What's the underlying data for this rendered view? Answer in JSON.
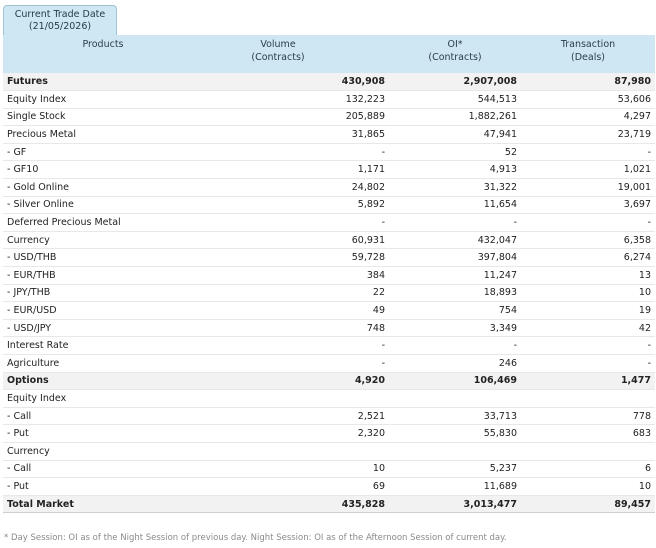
{
  "tab": {
    "line1": "Current Trade Date",
    "line2": "(21/05/2026)"
  },
  "headers": {
    "products": "Products",
    "volume": "Volume",
    "volume_unit": "(Contracts)",
    "oi": "OI*",
    "oi_unit": "(Contracts)",
    "transaction": "Transaction",
    "transaction_unit": "(Deals)"
  },
  "rows": [
    {
      "product": "Futures",
      "volume": "430,908",
      "oi": "2,907,008",
      "transaction": "87,980",
      "kind": "group"
    },
    {
      "product": "Equity Index",
      "volume": "132,223",
      "oi": "544,513",
      "transaction": "53,606",
      "kind": "row"
    },
    {
      "product": "Single Stock",
      "volume": "205,889",
      "oi": "1,882,261",
      "transaction": "4,297",
      "kind": "row"
    },
    {
      "product": "Precious Metal",
      "volume": "31,865",
      "oi": "47,941",
      "transaction": "23,719",
      "kind": "row"
    },
    {
      "product": "- GF",
      "volume": "-",
      "oi": "52",
      "transaction": "-",
      "kind": "row"
    },
    {
      "product": "- GF10",
      "volume": "1,171",
      "oi": "4,913",
      "transaction": "1,021",
      "kind": "row"
    },
    {
      "product": "- Gold Online",
      "volume": "24,802",
      "oi": "31,322",
      "transaction": "19,001",
      "kind": "row"
    },
    {
      "product": "- Silver Online",
      "volume": "5,892",
      "oi": "11,654",
      "transaction": "3,697",
      "kind": "row"
    },
    {
      "product": "Deferred Precious Metal",
      "volume": "-",
      "oi": "-",
      "transaction": "-",
      "kind": "row"
    },
    {
      "product": "Currency",
      "volume": "60,931",
      "oi": "432,047",
      "transaction": "6,358",
      "kind": "row"
    },
    {
      "product": "- USD/THB",
      "volume": "59,728",
      "oi": "397,804",
      "transaction": "6,274",
      "kind": "row"
    },
    {
      "product": "- EUR/THB",
      "volume": "384",
      "oi": "11,247",
      "transaction": "13",
      "kind": "row"
    },
    {
      "product": "- JPY/THB",
      "volume": "22",
      "oi": "18,893",
      "transaction": "10",
      "kind": "row"
    },
    {
      "product": "- EUR/USD",
      "volume": "49",
      "oi": "754",
      "transaction": "19",
      "kind": "row"
    },
    {
      "product": "- USD/JPY",
      "volume": "748",
      "oi": "3,349",
      "transaction": "42",
      "kind": "row"
    },
    {
      "product": "Interest Rate",
      "volume": "-",
      "oi": "-",
      "transaction": "-",
      "kind": "row"
    },
    {
      "product": "Agriculture",
      "volume": "-",
      "oi": "246",
      "transaction": "-",
      "kind": "row"
    },
    {
      "product": "Options",
      "volume": "4,920",
      "oi": "106,469",
      "transaction": "1,477",
      "kind": "group"
    },
    {
      "product": "Equity Index",
      "volume": "",
      "oi": "",
      "transaction": "",
      "kind": "row"
    },
    {
      "product": "- Call",
      "volume": "2,521",
      "oi": "33,713",
      "transaction": "778",
      "kind": "row"
    },
    {
      "product": "- Put",
      "volume": "2,320",
      "oi": "55,830",
      "transaction": "683",
      "kind": "row"
    },
    {
      "product": "Currency",
      "volume": "",
      "oi": "",
      "transaction": "",
      "kind": "row"
    },
    {
      "product": "- Call",
      "volume": "10",
      "oi": "5,237",
      "transaction": "6",
      "kind": "row"
    },
    {
      "product": "- Put",
      "volume": "69",
      "oi": "11,689",
      "transaction": "10",
      "kind": "row"
    },
    {
      "product": "Total Market",
      "volume": "435,828",
      "oi": "3,013,477",
      "transaction": "89,457",
      "kind": "total"
    }
  ],
  "footnote": "* Day Session: OI as of the Night Session of previous day. Night Session: OI as of the Afternoon Session of current day."
}
